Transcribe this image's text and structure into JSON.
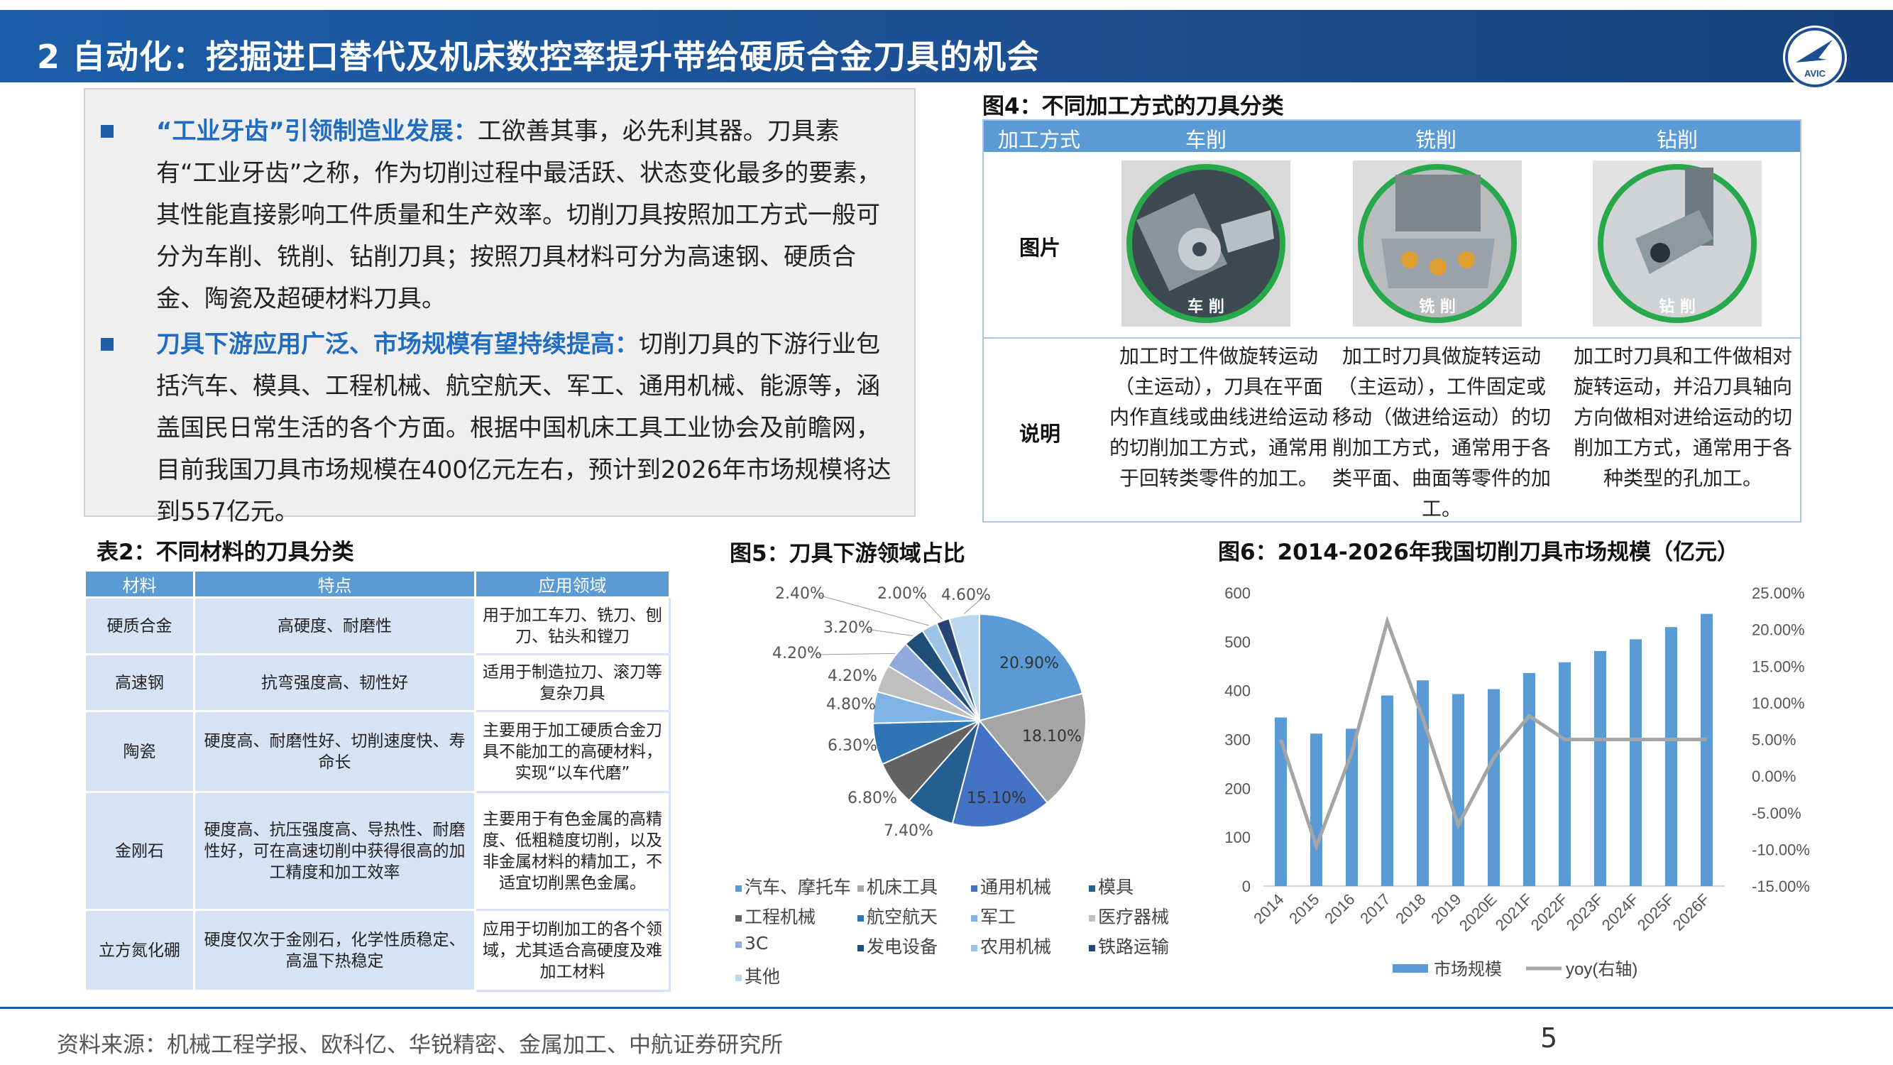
{
  "header": {
    "title": "2 自动化：挖掘进口替代及机床数控率提升带给硬质合金刀具的机会"
  },
  "brand": {
    "primary": "#1d4f92",
    "accent": "#5b9bd5",
    "highlight": "#1f6cc0",
    "logo_text": "AVIC"
  },
  "intro": {
    "bullets": [
      {
        "lead": "“工业牙齿”引领制造业发展：",
        "text": "工欲善其事，必先利其器。刀具素有“工业牙齿”之称，作为切削过程中最活跃、状态变化最多的要素，其性能直接影响工件质量和生产效率。切削刀具按照加工方式一般可分为车削、铣削、钻削刀具；按照刀具材料可分为高速钢、硬质合金、陶瓷及超硬材料刀具。"
      },
      {
        "lead": "刀具下游应用广泛、市场规模有望持续提高：",
        "text": "切削刀具的下游行业包括汽车、模具、工程机械、航空航天、军工、通用机械、能源等，涵盖国民日常生活的各个方面。根据中国机床工具工业协会及前瞻网，目前我国刀具市场规模在400亿元左右，预计到2026年市场规模将达到557亿元。"
      }
    ]
  },
  "fig4": {
    "title": "图4：不同加工方式的刀具分类",
    "headers": [
      "加工方式",
      "车削",
      "铣削",
      "钻削"
    ],
    "row_labels": [
      "图片",
      "说明"
    ],
    "captions": [
      "车 削",
      "铣 削",
      "钻 削"
    ],
    "descriptions": [
      "加工时工件做旋转运动（主运动），刀具在平面内作直线或曲线进给运动的切削加工方式，通常用于回转类零件的加工。",
      "加工时刀具做旋转运动（主运动），工件固定或移动（做进给运动）的切削加工方式，通常用于各类平面、曲面等零件的加工。",
      "加工时刀具和工件做相对旋转运动，并沿刀具轴向方向做相对进给运动的切削加工方式，通常用于各种类型的孔加工。"
    ]
  },
  "table2": {
    "title": "表2：不同材料的刀具分类",
    "headers": [
      "材料",
      "特点",
      "应用领域"
    ],
    "rows": [
      {
        "material": "硬质合金",
        "feature": "高硬度、耐磨性",
        "application": "用于加工车刀、铣刀、刨刀、钻头和镗刀"
      },
      {
        "material": "高速钢",
        "feature": "抗弯强度高、韧性好",
        "application": "适用于制造拉刀、滚刀等复杂刀具"
      },
      {
        "material": "陶瓷",
        "feature": "硬度高、耐磨性好、切削速度快、寿命长",
        "application": "主要用于加工硬质合金刀具不能加工的高硬材料，实现“以车代磨”"
      },
      {
        "material": "金刚石",
        "feature": "硬度高、抗压强度高、导热性、耐磨性好，可在高速切削中获得很高的加工精度和加工效率",
        "application": "主要用于有色金属的高精度、低粗糙度切削，以及非金属材料的精加工，不适宜切削黑色金属。"
      },
      {
        "material": "立方氮化硼",
        "feature": "硬度仅次于金刚石，化学性质稳定、高温下热稳定",
        "application": "应用于切削加工的各个领域，尤其适合高硬度及难加工材料"
      }
    ]
  },
  "chart_data": [
    {
      "type": "pie",
      "title": "图5：刀具下游领域占比",
      "categories": [
        "汽车、摩托车",
        "机床工具",
        "通用机械",
        "模具",
        "工程机械",
        "航空航天",
        "军工",
        "医疗器械",
        "3C",
        "发电设备",
        "农用机械",
        "铁路运输",
        "其他"
      ],
      "values": [
        20.9,
        18.1,
        15.1,
        7.4,
        6.8,
        6.3,
        4.8,
        4.2,
        4.2,
        3.2,
        2.4,
        2.0,
        4.6
      ],
      "labels": [
        "20.90%",
        "18.10%",
        "15.10%",
        "7.40%",
        "6.80%",
        "6.30%",
        "4.80%",
        "4.20%",
        "4.20%",
        "3.20%",
        "2.40%",
        "2.00%",
        "4.60%"
      ],
      "colors": [
        "#5b9bd5",
        "#a5a5a5",
        "#4472c4",
        "#255e91",
        "#636363",
        "#2e75b6",
        "#7fb2e5",
        "#bfbfbf",
        "#8faadc",
        "#1f4e79",
        "#9dc3e6",
        "#264478",
        "#bdd7ee"
      ],
      "legend_position": "bottom"
    },
    {
      "type": "bar+line",
      "title": "图6：2014-2026年我国切削刀具市场规模（亿元）",
      "categories": [
        "2014",
        "2015",
        "2016",
        "2017",
        "2018",
        "2019",
        "2020E",
        "2021F",
        "2022F",
        "2023F",
        "2024F",
        "2025F",
        "2026F"
      ],
      "series": [
        {
          "name": "市场规模",
          "type": "bar",
          "axis": "left",
          "color": "#5b9bd5",
          "values": [
            345,
            312,
            322,
            390,
            421,
            393,
            403,
            436,
            458,
            481,
            505,
            530,
            557
          ]
        },
        {
          "name": "yoy(右轴)",
          "type": "line",
          "axis": "right",
          "color": "#a5a5a5",
          "values": [
            5.0,
            -9.6,
            3.2,
            21.1,
            7.9,
            -6.7,
            2.5,
            8.2,
            5.0,
            5.0,
            5.0,
            5.0,
            5.0
          ]
        }
      ],
      "y_left": {
        "min": 0,
        "max": 600,
        "ticks": [
          "0",
          "100",
          "200",
          "300",
          "400",
          "500",
          "600"
        ]
      },
      "y_right": {
        "min": -15,
        "max": 25,
        "ticks": [
          "-15.00%",
          "-10.00%",
          "-5.00%",
          "0.00%",
          "5.00%",
          "10.00%",
          "15.00%",
          "20.00%",
          "25.00%"
        ]
      },
      "legend_position": "bottom"
    }
  ],
  "footer": {
    "source": "资料来源：机械工程学报、欧科亿、华锐精密、金属加工、中航证券研究所",
    "page": "5"
  }
}
